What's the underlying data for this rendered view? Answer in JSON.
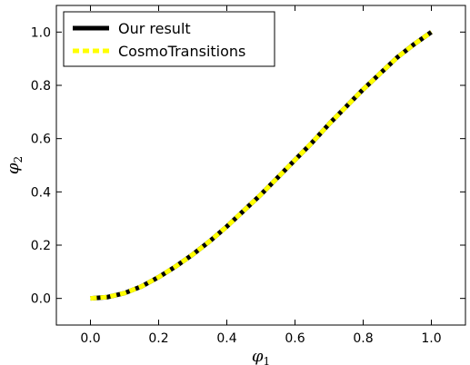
{
  "chart_data": {
    "type": "line",
    "xlabel": "φ",
    "xlabel_sub": "1",
    "ylabel": "φ",
    "ylabel_sub": "2",
    "xlim": [
      -0.1,
      1.1
    ],
    "ylim": [
      -0.1,
      1.1
    ],
    "xticks": [
      0.0,
      0.2,
      0.4,
      0.6,
      0.8,
      1.0
    ],
    "xtick_labels": [
      "0.0",
      "0.2",
      "0.4",
      "0.6",
      "0.8",
      "1.0"
    ],
    "yticks": [
      0.0,
      0.2,
      0.4,
      0.6,
      0.8,
      1.0
    ],
    "ytick_labels": [
      "0.0",
      "0.2",
      "0.4",
      "0.6",
      "0.8",
      "1.0"
    ],
    "grid": false,
    "legend_position": "top-left",
    "series": [
      {
        "name": "Our result",
        "color": "#000000",
        "style": "solid",
        "x": [
          0.0,
          0.05,
          0.1,
          0.15,
          0.2,
          0.25,
          0.3,
          0.35,
          0.4,
          0.45,
          0.5,
          0.55,
          0.6,
          0.65,
          0.7,
          0.75,
          0.8,
          0.85,
          0.9,
          0.95,
          1.0
        ],
        "y": [
          0.0,
          0.005,
          0.02,
          0.045,
          0.08,
          0.12,
          0.165,
          0.215,
          0.27,
          0.33,
          0.39,
          0.455,
          0.52,
          0.585,
          0.655,
          0.72,
          0.785,
          0.845,
          0.905,
          0.955,
          1.0
        ]
      },
      {
        "name": "CosmoTransitions",
        "color": "#ffff00",
        "style": "dashed",
        "x": [
          0.0,
          0.05,
          0.1,
          0.15,
          0.2,
          0.25,
          0.3,
          0.35,
          0.4,
          0.45,
          0.5,
          0.55,
          0.6,
          0.65,
          0.7,
          0.75,
          0.8,
          0.85,
          0.9,
          0.95,
          1.0
        ],
        "y": [
          0.0,
          0.005,
          0.02,
          0.045,
          0.08,
          0.12,
          0.165,
          0.215,
          0.27,
          0.33,
          0.39,
          0.455,
          0.52,
          0.585,
          0.655,
          0.72,
          0.785,
          0.845,
          0.905,
          0.955,
          1.0
        ]
      }
    ]
  }
}
